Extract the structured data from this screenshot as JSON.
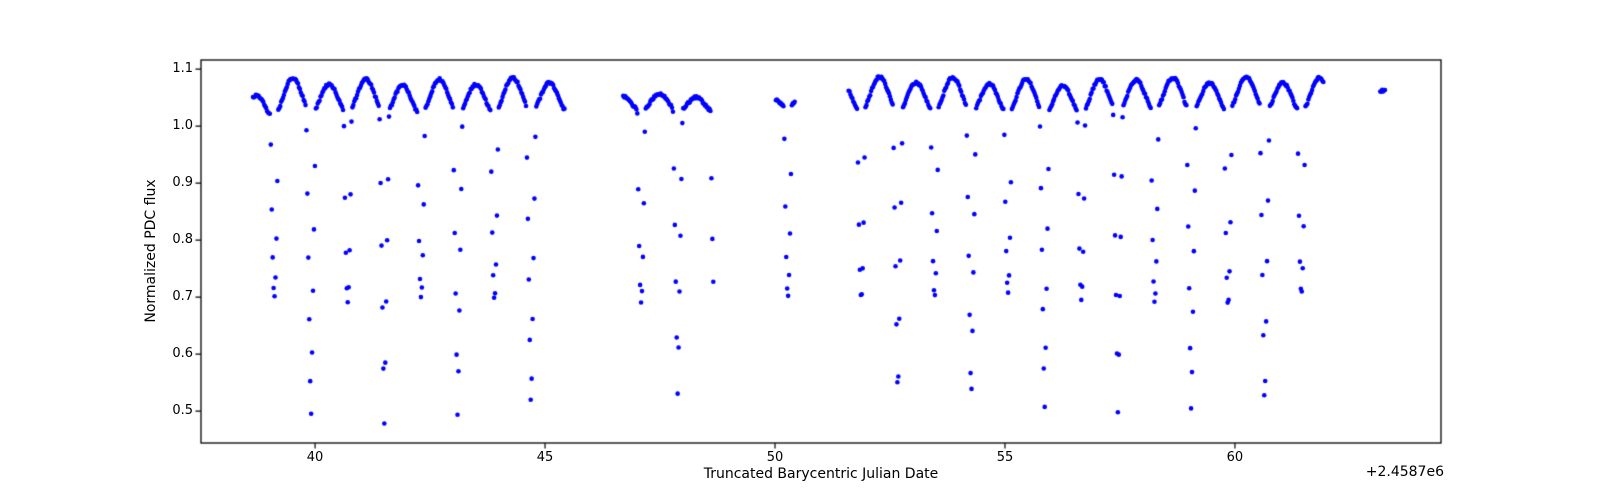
{
  "figure": {
    "background": "#ffffff",
    "axes_background": "#ffffff",
    "spine_color": "#000000"
  },
  "chart_data": {
    "type": "scatter",
    "title": "",
    "xlabel": "Truncated Barycentric Julian Date",
    "ylabel": "Normalized PDC flux",
    "x_offset_text": "+2.4587e6",
    "xlim": [
      37.52,
      64.48
    ],
    "ylim": [
      0.444,
      1.116
    ],
    "xticks": [
      40,
      45,
      50,
      55,
      60
    ],
    "yticks": [
      0.5,
      0.6,
      0.7,
      0.8,
      0.9,
      1.0,
      1.1
    ],
    "grid": false,
    "legend": null,
    "marker": {
      "color": "#0000ff",
      "radius_px": 2.3,
      "style": "point"
    },
    "cadence_days": 0.0204,
    "segments": [
      {
        "t_start": 38.65,
        "t_end": 45.44,
        "band_mean": 1.0515,
        "amp_scale": 1.0
      },
      {
        "t_start": 46.7,
        "t_end": 48.66,
        "band_mean": 1.04,
        "amp_scale": 0.5
      },
      {
        "t_start": 50.02,
        "t_end": 50.43,
        "band_mean": 1.045,
        "amp_scale": 0.35
      },
      {
        "t_start": 51.6,
        "t_end": 61.93,
        "band_mean": 1.0515,
        "amp_scale": 1.0
      },
      {
        "t_start": 63.16,
        "t_end": 63.27,
        "band_mean": 1.062,
        "amp_scale": 0.0
      }
    ],
    "band": {
      "period_days": 1.595,
      "phase_epoch": 39.91,
      "ellipsoidal_amp": 0.0275,
      "asymmetry_amp": 0.005,
      "slow_wander_amp": 0.0025,
      "slow_wander_period": 7.3,
      "noise_amp": 0.002,
      "flux_min": 1.02,
      "flux_max": 1.085,
      "start_dip": {
        "center": 38.55,
        "sigma": 0.55,
        "depth": 0.024
      },
      "peak_boost": {
        "center": 57.87,
        "sigma": 0.45,
        "amp": 0.008
      }
    },
    "primary_eclipses": {
      "half_duration_days": 0.105,
      "bottom_exponent": 1.0,
      "times": [
        39.91,
        41.505,
        43.1,
        44.695,
        47.885,
        52.67,
        54.265,
        55.86,
        57.455,
        59.05,
        60.645
      ],
      "min_flux": [
        0.47,
        0.473,
        0.479,
        0.486,
        0.522,
        0.505,
        0.502,
        0.489,
        0.497,
        0.484,
        0.488
      ]
    },
    "secondary_eclipses": {
      "half_duration_days": 0.085,
      "bottom_exponent": 1.8,
      "times": [
        39.115,
        40.71,
        42.305,
        43.9,
        47.09,
        48.685,
        50.28,
        51.875,
        53.47,
        55.065,
        56.66,
        58.255,
        59.85,
        61.445
      ],
      "min_flux": [
        0.7,
        0.691,
        0.699,
        0.695,
        0.69,
        0.685,
        0.7,
        0.697,
        0.7,
        0.707,
        0.695,
        0.69,
        0.685,
        0.705
      ]
    }
  }
}
